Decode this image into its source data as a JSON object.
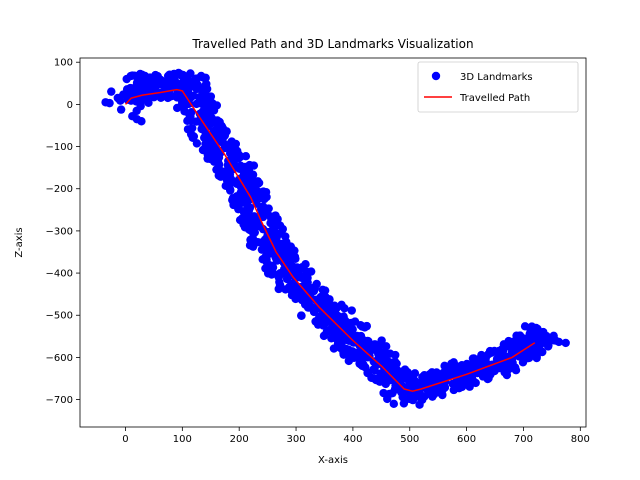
{
  "chart_data": {
    "type": "scatter",
    "title": "Travelled Path and 3D Landmarks Visualization",
    "xlabel": "X-axis",
    "ylabel": "Z-axis",
    "xlim": [
      -80,
      810
    ],
    "ylim": [
      -765,
      110
    ],
    "xticks": [
      0,
      100,
      200,
      300,
      400,
      500,
      600,
      700,
      800
    ],
    "yticks": [
      100,
      0,
      -100,
      -200,
      -300,
      -400,
      -500,
      -600,
      -700
    ],
    "grid": false,
    "legend_position": "upper right",
    "series": [
      {
        "name": "3D Landmarks",
        "kind": "scatter",
        "color": "#0000ff",
        "band_centerline": [
          [
            5,
            5
          ],
          [
            20,
            40
          ],
          [
            50,
            45
          ],
          [
            90,
            45
          ],
          [
            110,
            45
          ],
          [
            150,
            -70
          ],
          [
            200,
            -175
          ],
          [
            225,
            -240
          ],
          [
            250,
            -310
          ],
          [
            275,
            -375
          ],
          [
            300,
            -425
          ],
          [
            350,
            -495
          ],
          [
            400,
            -560
          ],
          [
            450,
            -620
          ],
          [
            490,
            -685
          ],
          [
            520,
            -670
          ],
          [
            600,
            -635
          ],
          [
            680,
            -595
          ],
          [
            720,
            -560
          ],
          [
            750,
            -545
          ]
        ],
        "band_half_width": 30,
        "outliers": [
          [
            -35,
            5
          ],
          [
            -28,
            3
          ],
          [
            20,
            -35
          ],
          [
            28,
            -40
          ],
          [
            12,
            -28
          ]
        ]
      },
      {
        "name": "Travelled Path",
        "kind": "line",
        "color": "#ff0000",
        "points": [
          [
            0,
            0
          ],
          [
            10,
            15
          ],
          [
            30,
            22
          ],
          [
            60,
            28
          ],
          [
            90,
            35
          ],
          [
            100,
            32
          ],
          [
            130,
            -30
          ],
          [
            175,
            -120
          ],
          [
            220,
            -220
          ],
          [
            240,
            -280
          ],
          [
            265,
            -350
          ],
          [
            295,
            -410
          ],
          [
            340,
            -480
          ],
          [
            400,
            -560
          ],
          [
            450,
            -620
          ],
          [
            490,
            -675
          ],
          [
            505,
            -680
          ],
          [
            520,
            -675
          ],
          [
            600,
            -640
          ],
          [
            680,
            -600
          ],
          [
            720,
            -565
          ]
        ]
      }
    ]
  }
}
